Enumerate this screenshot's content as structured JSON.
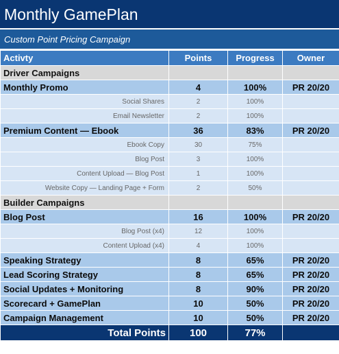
{
  "title": "Monthly GamePlan",
  "subtitle": "Custom Point Pricing Campaign",
  "headers": {
    "activity": "Activty",
    "points": "Points",
    "progress": "Progress",
    "owner": "Owner"
  },
  "sections": {
    "driver": "Driver Campaigns",
    "builder": "Builder Campaigns"
  },
  "rows": {
    "monthly_promo": {
      "activity": "Monthly Promo",
      "points": "4",
      "progress": "100%",
      "owner": "PR 20/20"
    },
    "social_shares": {
      "activity": "Social Shares",
      "points": "2",
      "progress": "100%"
    },
    "email_newsletter": {
      "activity": "Email Newsletter",
      "points": "2",
      "progress": "100%"
    },
    "premium_content": {
      "activity": "Premium Content — Ebook",
      "points": "36",
      "progress": "83%",
      "owner": "PR 20/20"
    },
    "ebook_copy": {
      "activity": "Ebook Copy",
      "points": "30",
      "progress": "75%"
    },
    "blog_post_sub": {
      "activity": "Blog Post",
      "points": "3",
      "progress": "100%"
    },
    "content_upload_blog": {
      "activity": "Content Upload — Blog Post",
      "points": "1",
      "progress": "100%"
    },
    "website_copy": {
      "activity": "Website Copy — Landing Page + Form",
      "points": "2",
      "progress": "50%"
    },
    "blog_post": {
      "activity": "Blog Post",
      "points": "16",
      "progress": "100%",
      "owner": "PR 20/20"
    },
    "blog_post_x4": {
      "activity": "Blog Post (x4)",
      "points": "12",
      "progress": "100%"
    },
    "content_upload_x4": {
      "activity": "Content Upload (x4)",
      "points": "4",
      "progress": "100%"
    },
    "speaking_strategy": {
      "activity": "Speaking Strategy",
      "points": "8",
      "progress": "65%",
      "owner": "PR 20/20"
    },
    "lead_scoring": {
      "activity": "Lead Scoring Strategy",
      "points": "8",
      "progress": "65%",
      "owner": "PR 20/20"
    },
    "social_updates": {
      "activity": "Social Updates + Monitoring",
      "points": "8",
      "progress": "90%",
      "owner": "PR 20/20"
    },
    "scorecard": {
      "activity": "Scorecard + GamePlan",
      "points": "10",
      "progress": "50%",
      "owner": "PR 20/20"
    },
    "campaign_mgmt": {
      "activity": "Campaign Management",
      "points": "10",
      "progress": "50%",
      "owner": "PR 20/20"
    }
  },
  "total": {
    "label": "Total Points",
    "points": "100",
    "progress": "77%"
  }
}
